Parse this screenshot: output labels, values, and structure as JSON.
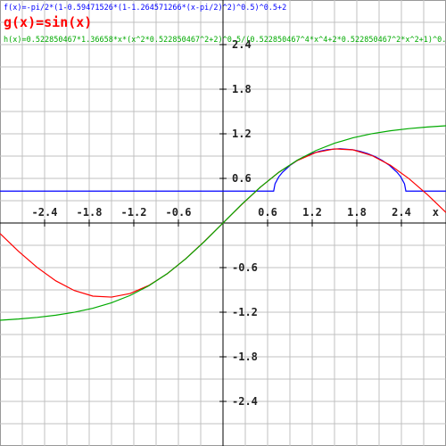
{
  "chart_data": {
    "type": "line",
    "xlim": [
      -3,
      3
    ],
    "ylim": [
      -3,
      3
    ],
    "xticks": [
      -2.4,
      -1.8,
      -1.2,
      -0.6,
      0.6,
      1.2,
      1.8,
      2.4
    ],
    "yticks": [
      -2.4,
      -1.8,
      -1.2,
      -0.6,
      0.6,
      1.2,
      1.8,
      2.4
    ],
    "xgrid": [
      -2.7,
      -2.4,
      -2.1,
      -1.8,
      -1.5,
      -1.2,
      -0.9,
      -0.6,
      -0.3,
      0,
      0.3,
      0.6,
      0.9,
      1.2,
      1.5,
      1.8,
      2.1,
      2.4,
      2.7
    ],
    "ygrid": [
      -2.7,
      -2.4,
      -2.1,
      -1.8,
      -1.5,
      -1.2,
      -0.9,
      -0.6,
      -0.3,
      0,
      0.3,
      0.6,
      0.9,
      1.2,
      1.5,
      1.8,
      2.1,
      2.4,
      2.7
    ],
    "grid": true,
    "x_axis_label": "x",
    "series": [
      {
        "name": "f(x)=-pi/2*(1-0.59471526*(1-1.264571266*(x-pi/2)^2)^0.5)^0.5+2",
        "color": "#0000ff",
        "x": [
          -3,
          0.6815,
          0.7,
          0.75,
          0.8,
          0.9,
          1.0,
          1.1,
          1.2,
          1.3,
          1.4,
          1.5708,
          1.7416,
          1.8416,
          1.9416,
          2.0416,
          2.1416,
          2.2416,
          2.3416,
          2.3916,
          2.4416,
          2.4601,
          3
        ],
        "values": [
          0.429,
          0.429,
          0.5269,
          0.6206,
          0.6826,
          0.7736,
          0.8415,
          0.8943,
          0.9353,
          0.9657,
          0.9864,
          1.0,
          0.9864,
          0.9657,
          0.9353,
          0.8943,
          0.8415,
          0.7736,
          0.6826,
          0.6206,
          0.5269,
          0.429,
          0.429
        ]
      },
      {
        "name": "g(x)=sin(x)",
        "color": "#ff0000",
        "x": [
          -3,
          -2.75,
          -2.5,
          -2.25,
          -2,
          -1.75,
          -1.5,
          -1.25,
          -1,
          -0.75,
          -0.5,
          -0.25,
          0,
          0.25,
          0.5,
          0.75,
          1,
          1.25,
          1.5,
          1.75,
          2,
          2.25,
          2.5,
          2.75,
          3
        ],
        "values": [
          -0.141,
          -0.382,
          -0.598,
          -0.778,
          -0.909,
          -0.984,
          -0.997,
          -0.949,
          -0.841,
          -0.682,
          -0.479,
          -0.247,
          0,
          0.247,
          0.479,
          0.682,
          0.841,
          0.949,
          0.997,
          0.984,
          0.909,
          0.778,
          0.598,
          0.382,
          0.141
        ]
      },
      {
        "name": "h(x)=0.522850467*1.36658*x*(x^2*0.522850467^2+2)^0.5/(0.522850467^4*x^4+2*0.522850467^2*x^2+1)^0.5",
        "color": "#00aa00",
        "x": [
          -3,
          -2.75,
          -2.5,
          -2.25,
          -2,
          -1.75,
          -1.5,
          -1.25,
          -1,
          -0.75,
          -0.5,
          -0.25,
          0,
          0.25,
          0.5,
          0.75,
          1,
          1.25,
          1.5,
          1.75,
          2,
          2.25,
          2.5,
          2.75,
          3
        ],
        "values": [
          -1.3083,
          -1.2919,
          -1.27,
          -1.2405,
          -1.2006,
          -1.1464,
          -1.0731,
          -0.975,
          -0.846,
          -0.6816,
          -0.4809,
          -0.2494,
          0,
          0.2494,
          0.4809,
          0.6816,
          0.846,
          0.975,
          1.0731,
          1.1464,
          1.2006,
          1.2405,
          1.27,
          1.2919,
          1.3083
        ]
      }
    ]
  }
}
